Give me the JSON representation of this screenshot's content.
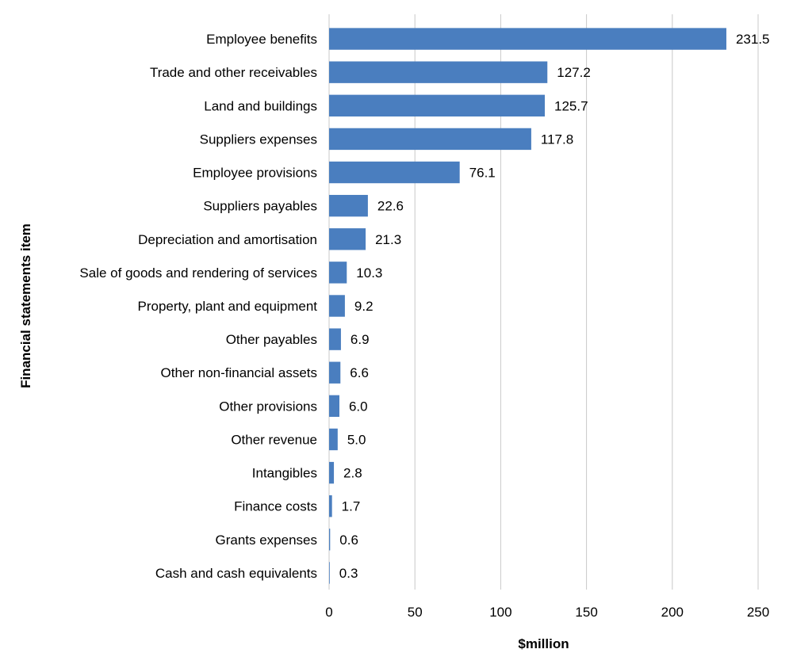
{
  "chart_data": {
    "type": "bar",
    "orientation": "horizontal",
    "categories": [
      "Employee benefits",
      "Trade and other receivables",
      "Land and buildings",
      "Suppliers expenses",
      "Employee provisions",
      "Suppliers payables",
      "Depreciation and amortisation",
      "Sale of goods and rendering of services",
      "Property, plant and equipment",
      "Other payables",
      "Other non-financial assets",
      "Other provisions",
      "Other revenue",
      "Intangibles",
      "Finance costs",
      "Grants expenses",
      "Cash and cash equivalents"
    ],
    "values": [
      231.5,
      127.2,
      125.7,
      117.8,
      76.1,
      22.6,
      21.3,
      10.3,
      9.2,
      6.9,
      6.6,
      6.0,
      5.0,
      2.8,
      1.7,
      0.6,
      0.3
    ],
    "value_labels": [
      "231.5",
      "127.2",
      "125.7",
      "117.8",
      "76.1",
      "22.6",
      "21.3",
      "10.3",
      "9.2",
      "6.9",
      "6.6",
      "6.0",
      "5.0",
      "2.8",
      "1.7",
      "0.6",
      "0.3"
    ],
    "xlabel": "$million",
    "ylabel": "Financial statements item",
    "xlim": [
      0,
      250
    ],
    "xticks": [
      "0",
      "50",
      "100",
      "150",
      "200",
      "250"
    ],
    "grid": true,
    "legend": "none",
    "colors": {
      "bar": "#4a7ebf",
      "grid": "#c8c8c8"
    }
  }
}
